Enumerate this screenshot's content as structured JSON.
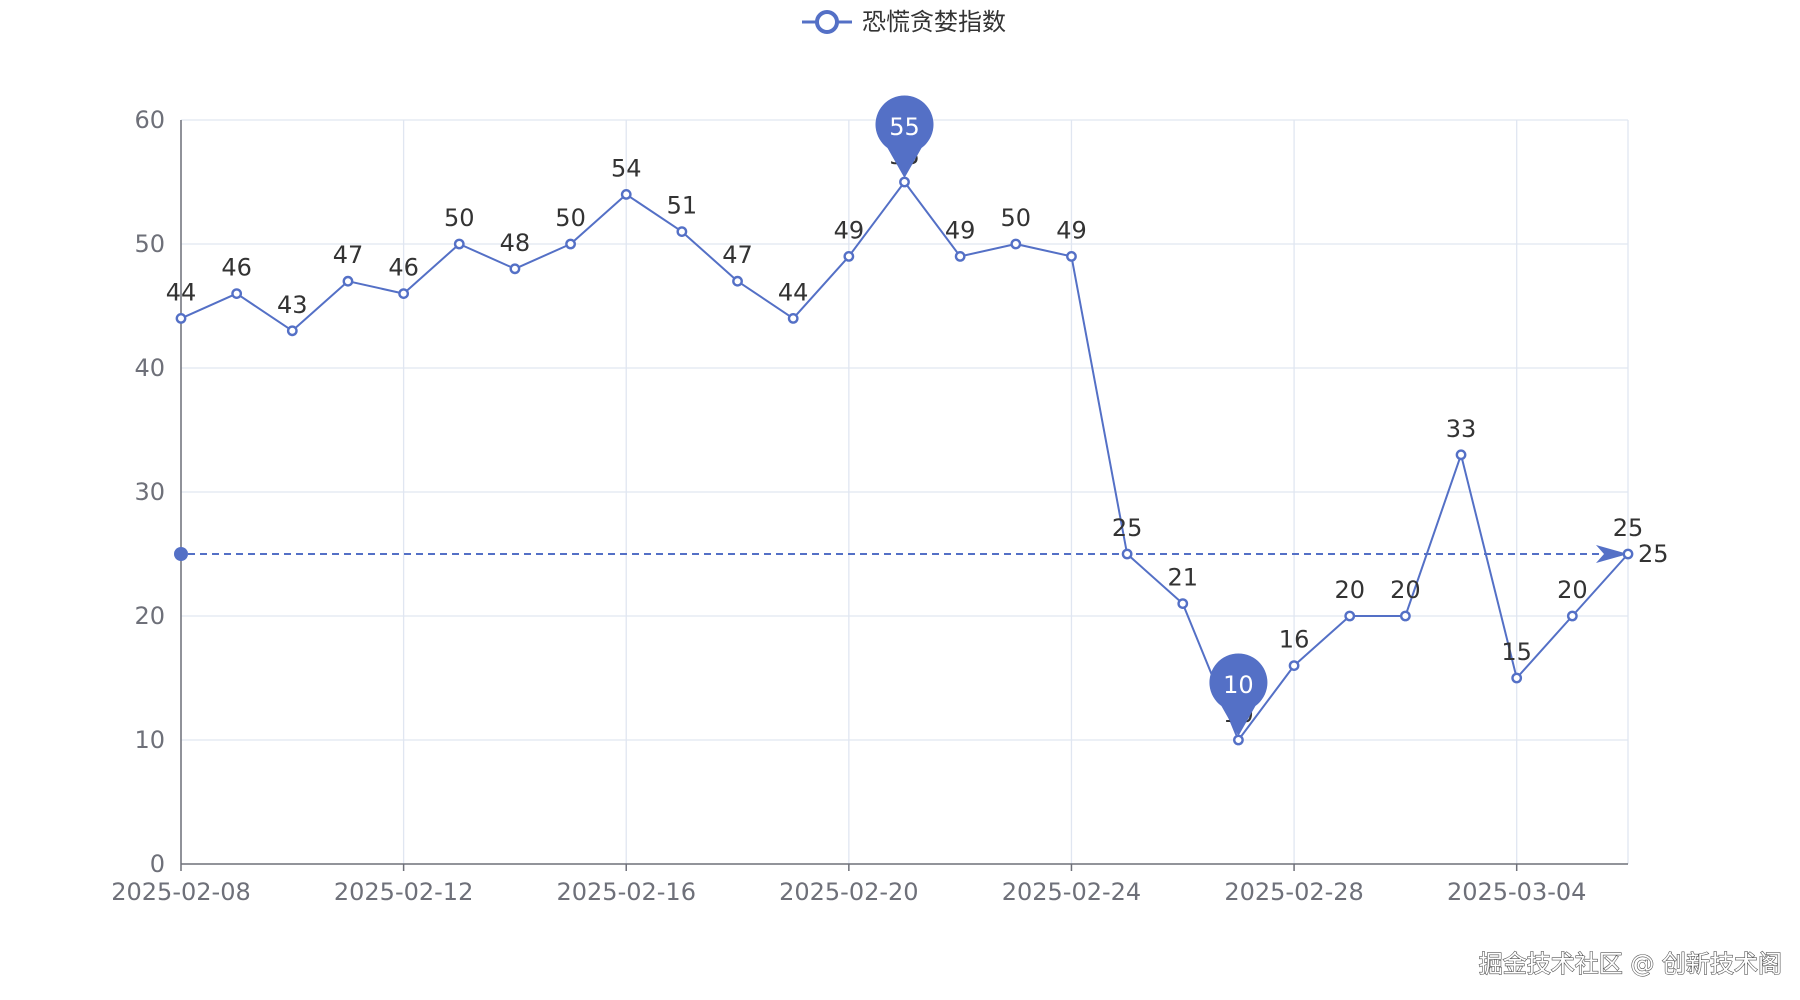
{
  "chart_data": {
    "type": "line",
    "x": [
      "2025-02-08",
      "2025-02-09",
      "2025-02-10",
      "2025-02-11",
      "2025-02-12",
      "2025-02-13",
      "2025-02-14",
      "2025-02-15",
      "2025-02-16",
      "2025-02-17",
      "2025-02-18",
      "2025-02-19",
      "2025-02-20",
      "2025-02-21",
      "2025-02-22",
      "2025-02-23",
      "2025-02-24",
      "2025-02-25",
      "2025-02-26",
      "2025-02-27",
      "2025-02-28",
      "2025-03-01",
      "2025-03-02",
      "2025-03-03",
      "2025-03-04",
      "2025-03-05",
      "2025-03-06"
    ],
    "x_tick_labels": [
      "2025-02-08",
      "2025-02-12",
      "2025-02-16",
      "2025-02-20",
      "2025-02-24",
      "2025-02-28",
      "2025-03-04"
    ],
    "series": [
      {
        "name": "恐慌贪婪指数",
        "values": [
          44,
          46,
          43,
          47,
          46,
          50,
          48,
          50,
          54,
          51,
          47,
          44,
          49,
          55,
          49,
          50,
          49,
          25,
          21,
          10,
          16,
          20,
          20,
          33,
          15,
          20,
          25
        ],
        "color": "#5470c6"
      }
    ],
    "ylim": [
      0,
      60
    ],
    "y_ticks": [
      0,
      10,
      20,
      30,
      40,
      50,
      60
    ],
    "mark_points": [
      {
        "type": "max",
        "label": "55",
        "x": "2025-02-21",
        "y": 55
      },
      {
        "type": "min",
        "label": "10",
        "x": "2025-02-27",
        "y": 10
      }
    ],
    "mark_line": {
      "type": "average-style horizontal line",
      "y": 25,
      "label": "25"
    },
    "grid": true,
    "legend": "top-center"
  },
  "watermark": "掘金技术社区 @ 创新技术阁"
}
